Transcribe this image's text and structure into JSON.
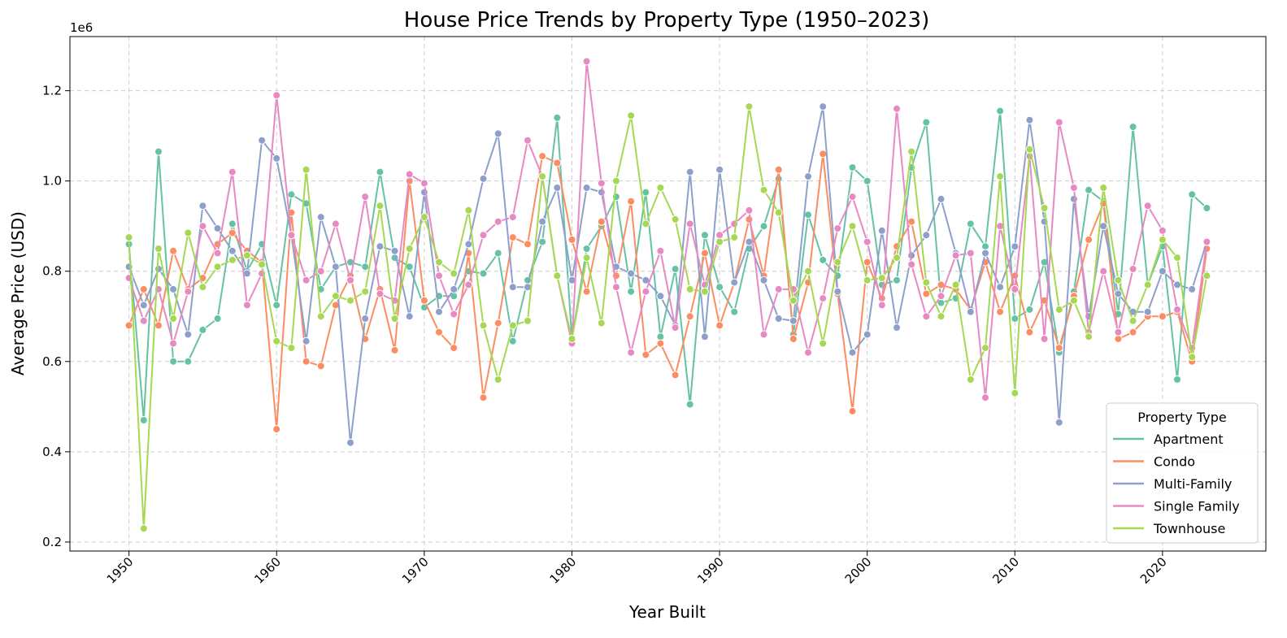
{
  "chart_data": {
    "type": "line",
    "title": "House Price Trends by Property Type (1950–2023)",
    "xlabel": "Year Built",
    "ylabel": "Average Price (USD)",
    "y_scale_label": "1e6",
    "xlim": [
      1946,
      2027
    ],
    "ylim": [
      0.18,
      1.32
    ],
    "x_ticks": [
      1950,
      1960,
      1970,
      1980,
      1990,
      2000,
      2010,
      2020
    ],
    "x_tick_labels": [
      "1950",
      "1960",
      "1970",
      "1980",
      "1990",
      "2000",
      "2010",
      "2020"
    ],
    "y_ticks": [
      0.2,
      0.4,
      0.6,
      0.8,
      1.0,
      1.2
    ],
    "y_tick_labels": [
      "0.2",
      "0.4",
      "0.6",
      "0.8",
      "1.0",
      "1.2"
    ],
    "grid": true,
    "legend": {
      "title": "Property Type",
      "position": "bottom-right"
    },
    "x": [
      1950,
      1951,
      1952,
      1953,
      1954,
      1955,
      1956,
      1957,
      1958,
      1959,
      1960,
      1961,
      1962,
      1963,
      1964,
      1965,
      1966,
      1967,
      1968,
      1969,
      1970,
      1971,
      1972,
      1973,
      1974,
      1975,
      1976,
      1977,
      1978,
      1979,
      1980,
      1981,
      1982,
      1983,
      1984,
      1985,
      1986,
      1987,
      1988,
      1989,
      1990,
      1991,
      1992,
      1993,
      1994,
      1995,
      1996,
      1997,
      1998,
      1999,
      2000,
      2001,
      2002,
      2003,
      2004,
      2005,
      2006,
      2007,
      2008,
      2009,
      2010,
      2011,
      2012,
      2013,
      2014,
      2015,
      2016,
      2017,
      2018,
      2019,
      2020,
      2021,
      2022,
      2023
    ],
    "series": [
      {
        "name": "Apartment",
        "color": "#66c2a5",
        "values": [
          0.86,
          0.47,
          1.065,
          0.6,
          0.6,
          0.67,
          0.695,
          0.905,
          0.8,
          0.86,
          0.725,
          0.97,
          0.95,
          0.76,
          0.81,
          0.82,
          0.81,
          1.02,
          0.83,
          0.81,
          0.72,
          0.745,
          0.745,
          0.8,
          0.795,
          0.84,
          0.645,
          0.78,
          0.865,
          1.14,
          0.65,
          0.85,
          0.9,
          0.965,
          0.755,
          0.975,
          0.655,
          0.805,
          0.505,
          0.88,
          0.765,
          0.71,
          0.85,
          0.9,
          1.005,
          0.66,
          0.925,
          0.825,
          0.79,
          1.03,
          1.0,
          0.77,
          0.78,
          1.03,
          1.13,
          0.73,
          0.74,
          0.905,
          0.855,
          1.155,
          0.695,
          0.715,
          0.82,
          0.62,
          0.755,
          0.98,
          0.955,
          0.705,
          1.12,
          0.77,
          0.855,
          0.56,
          0.97,
          0.94
        ]
      },
      {
        "name": "Condo",
        "color": "#fc8d62",
        "values": [
          0.68,
          0.76,
          0.68,
          0.845,
          0.76,
          0.785,
          0.86,
          0.885,
          0.845,
          0.82,
          0.45,
          0.93,
          0.6,
          0.59,
          0.725,
          0.79,
          0.65,
          0.76,
          0.625,
          1.0,
          0.735,
          0.665,
          0.63,
          0.84,
          0.52,
          0.685,
          0.875,
          0.86,
          1.055,
          1.04,
          0.87,
          0.755,
          0.91,
          0.79,
          0.955,
          0.615,
          0.64,
          0.57,
          0.7,
          0.84,
          0.68,
          0.775,
          0.915,
          0.79,
          1.025,
          0.65,
          0.775,
          1.06,
          0.75,
          0.49,
          0.82,
          0.74,
          0.855,
          0.91,
          0.75,
          0.77,
          0.76,
          0.715,
          0.82,
          0.71,
          0.79,
          0.665,
          0.735,
          0.63,
          0.745,
          0.87,
          0.95,
          0.65,
          0.665,
          0.7,
          0.7,
          0.71,
          0.6,
          0.85
        ]
      },
      {
        "name": "Multi-Family",
        "color": "#8da0cb",
        "values": [
          0.81,
          0.725,
          0.805,
          0.76,
          0.66,
          0.945,
          0.895,
          0.845,
          0.795,
          1.09,
          1.05,
          0.88,
          0.645,
          0.92,
          0.81,
          0.42,
          0.695,
          0.855,
          0.845,
          0.7,
          0.975,
          0.71,
          0.76,
          0.86,
          1.005,
          1.105,
          0.765,
          0.765,
          0.91,
          0.985,
          0.78,
          0.985,
          0.975,
          0.81,
          0.795,
          0.78,
          0.745,
          0.68,
          1.02,
          0.655,
          1.025,
          0.775,
          0.865,
          0.78,
          0.695,
          0.69,
          1.01,
          1.165,
          0.755,
          0.62,
          0.66,
          0.89,
          0.675,
          0.835,
          0.88,
          0.96,
          0.84,
          0.71,
          0.84,
          0.765,
          0.855,
          1.135,
          0.91,
          0.465,
          0.96,
          0.7,
          0.9,
          0.75,
          0.71,
          0.71,
          0.8,
          0.77,
          0.76,
          0.865
        ]
      },
      {
        "name": "Single Family",
        "color": "#e78ac3",
        "values": [
          0.785,
          0.69,
          0.76,
          0.64,
          0.755,
          0.9,
          0.84,
          1.02,
          0.725,
          0.795,
          1.19,
          0.88,
          0.78,
          0.8,
          0.905,
          0.78,
          0.965,
          0.75,
          0.735,
          1.015,
          0.995,
          0.79,
          0.705,
          0.77,
          0.88,
          0.91,
          0.92,
          1.09,
          1.01,
          0.79,
          0.64,
          1.265,
          0.995,
          0.765,
          0.62,
          0.755,
          0.845,
          0.675,
          0.905,
          0.77,
          0.88,
          0.905,
          0.935,
          0.66,
          0.76,
          0.76,
          0.62,
          0.74,
          0.895,
          0.965,
          0.865,
          0.725,
          1.16,
          0.815,
          0.7,
          0.745,
          0.835,
          0.84,
          0.52,
          0.9,
          0.76,
          1.055,
          0.65,
          1.13,
          0.985,
          0.665,
          0.8,
          0.665,
          0.805,
          0.945,
          0.89,
          0.715,
          0.63,
          0.865
        ]
      },
      {
        "name": "Townhouse",
        "color": "#a6d854",
        "values": [
          0.875,
          0.23,
          0.85,
          0.695,
          0.885,
          0.765,
          0.81,
          0.825,
          0.835,
          0.815,
          0.645,
          0.63,
          1.025,
          0.7,
          0.745,
          0.735,
          0.755,
          0.945,
          0.695,
          0.85,
          0.92,
          0.82,
          0.795,
          0.935,
          0.68,
          0.56,
          0.68,
          0.69,
          1.01,
          0.79,
          0.65,
          0.83,
          0.685,
          1.0,
          1.145,
          0.905,
          0.985,
          0.915,
          0.76,
          0.755,
          0.865,
          0.875,
          1.165,
          0.98,
          0.93,
          0.735,
          0.8,
          0.64,
          0.82,
          0.9,
          0.78,
          0.785,
          0.83,
          1.065,
          0.775,
          0.7,
          0.77,
          0.56,
          0.63,
          1.01,
          0.53,
          1.07,
          0.94,
          0.715,
          0.735,
          0.655,
          0.985,
          0.78,
          0.69,
          0.77,
          0.87,
          0.83,
          0.61,
          0.79
        ]
      }
    ]
  }
}
